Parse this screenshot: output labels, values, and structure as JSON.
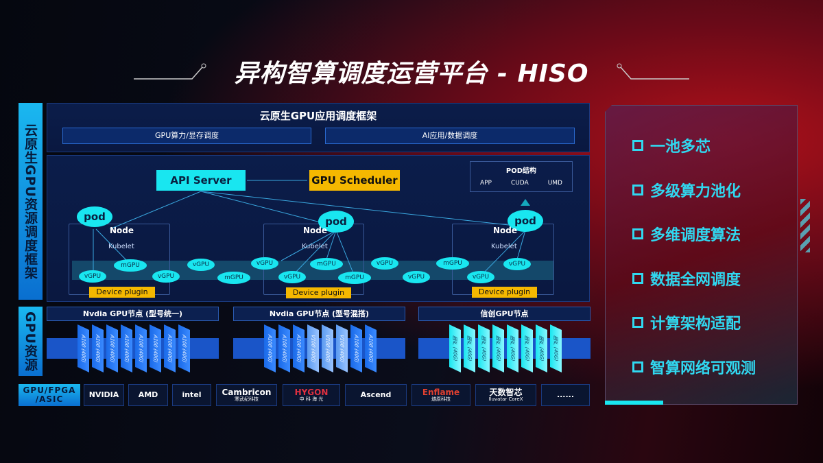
{
  "title": "异构智算调度运营平台 - HISO",
  "side_labels": {
    "framework": "云原生GPU资源调度框架",
    "resources": "GPU资源",
    "chips": "GPU/FPGA /ASIC"
  },
  "app_framework": {
    "title": "云原生GPU应用调度框架",
    "boxes": [
      "GPU算力/显存调度",
      "AI应用/数据调度"
    ]
  },
  "diagram": {
    "api_server": "API Server",
    "gpu_scheduler": "GPU Scheduler",
    "pod_structure": {
      "title": "POD结构",
      "items": [
        "APP",
        "CUDA",
        "UMD"
      ]
    },
    "pod": "pod",
    "node": "Node",
    "kubelet": "Kubelet",
    "device_plugin": "Device plugin",
    "units": [
      "vGPU",
      "mGPU",
      "vGPU",
      "vGPU",
      "mGPU",
      "vGPU",
      "vGPU",
      "mGPU",
      "mGPU",
      "vGPU",
      "vGPU",
      "mGPU",
      "vGPU",
      "vGPU"
    ]
  },
  "gpu_groups": [
    {
      "title": "Nvdia GPU节点 (型号统一)",
      "chips": [
        "A100 (40G)",
        "A100 (40G)",
        "A100 (40G)",
        "A100 (40G)",
        "A100 (40G)",
        "A100 (40G)",
        "A100 (40G)",
        "A100 (40G)"
      ],
      "color": "#1a6ae8"
    },
    {
      "title": "Nvdia GPU节点 (型号混搭)",
      "chips": [
        "A100 (40G)",
        "A100 (40G)",
        "A100 (40G)",
        "V100 (40G)",
        "V100 (40G)",
        "V100 (40G)",
        "A100 (40G)",
        "A100 (40G)"
      ],
      "color": "#1a6ae8"
    },
    {
      "title": "信创GPU节点",
      "chips": [
        "国产 (40G)",
        "国产 (40G)",
        "国产 (40G)",
        "国产 (40G)",
        "国产 (40G)",
        "国产 (40G)",
        "国产 (40G)",
        "国产 (40G)"
      ],
      "color": "#19e6f0"
    }
  ],
  "vendors": [
    {
      "name": "NVIDIA"
    },
    {
      "name": "AMD"
    },
    {
      "name": "intel"
    },
    {
      "name": "Cambricon",
      "sub": "寒武纪科技"
    },
    {
      "name": "HYGON",
      "sub": "中 科 海 光"
    },
    {
      "name": "Ascend"
    },
    {
      "name": "Enflame",
      "sub": "燧原科技"
    },
    {
      "name": "天数智芯",
      "sub": "Iluvatar CoreX"
    },
    {
      "name": "......"
    }
  ],
  "features": [
    "一池多芯",
    "多级算力池化",
    "多维调度算法",
    "数据全网调度",
    "计算架构适配",
    "智算网络可观测"
  ],
  "colors": {
    "cyan": "#19e6f0",
    "yellow": "#f5b800",
    "blue": "#1a6ae8",
    "red": "#b0101a"
  }
}
